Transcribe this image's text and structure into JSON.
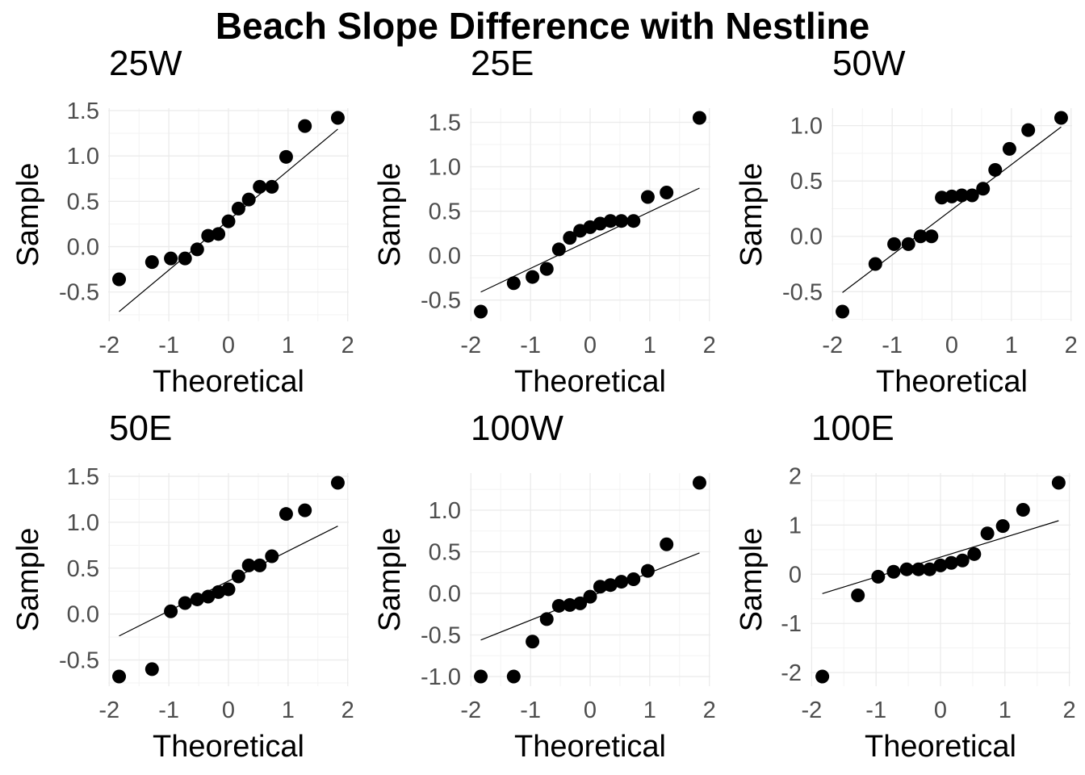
{
  "chart_data": {
    "type": "scatter",
    "title": "Beach Slope Difference with Nestline",
    "theoretical_quantiles": [
      -1.834,
      -1.282,
      -0.967,
      -0.728,
      -0.524,
      -0.341,
      -0.168,
      0,
      0.168,
      0.341,
      0.524,
      0.728,
      0.967,
      1.282,
      1.834
    ],
    "grid": true,
    "point_color": "#000000",
    "line_color": "#000000",
    "panels": [
      {
        "title": "25W",
        "xlabel": "Theoretical",
        "ylabel": "Sample",
        "xticks": [
          "-2",
          "-1",
          "0",
          "1",
          "2"
        ],
        "yticks": [
          "-0.5",
          "0.0",
          "0.5",
          "1.0",
          "1.5"
        ],
        "sample": [
          -0.36,
          -0.17,
          -0.13,
          -0.13,
          -0.03,
          0.12,
          0.14,
          0.28,
          0.42,
          0.52,
          0.66,
          0.66,
          0.99,
          1.33,
          1.42
        ]
      },
      {
        "title": "25E",
        "xlabel": "Theoretical",
        "ylabel": "Sample",
        "xticks": [
          "-2",
          "-1",
          "0",
          "1",
          "2"
        ],
        "yticks": [
          "-0.5",
          "0.0",
          "0.5",
          "1.0",
          "1.5"
        ],
        "sample": [
          -0.63,
          -0.31,
          -0.24,
          -0.15,
          0.07,
          0.2,
          0.28,
          0.32,
          0.36,
          0.39,
          0.39,
          0.39,
          0.66,
          0.71,
          1.55
        ]
      },
      {
        "title": "50W",
        "xlabel": "Theoretical",
        "ylabel": "Sample",
        "xticks": [
          "-2",
          "-1",
          "0",
          "1",
          "2"
        ],
        "yticks": [
          "-0.5",
          "0.0",
          "0.5",
          "1.0"
        ],
        "sample": [
          -0.68,
          -0.25,
          -0.07,
          -0.07,
          0.0,
          0.0,
          0.35,
          0.36,
          0.37,
          0.37,
          0.43,
          0.6,
          0.79,
          0.96,
          1.07
        ]
      },
      {
        "title": "50E",
        "xlabel": "Theoretical",
        "ylabel": "Sample",
        "xticks": [
          "-2",
          "-1",
          "0",
          "1",
          "2"
        ],
        "yticks": [
          "-0.5",
          "0.0",
          "0.5",
          "1.0",
          "1.5"
        ],
        "sample": [
          -0.68,
          -0.6,
          0.03,
          0.12,
          0.16,
          0.19,
          0.24,
          0.27,
          0.41,
          0.53,
          0.53,
          0.63,
          1.09,
          1.13,
          1.43
        ]
      },
      {
        "title": "100W",
        "xlabel": "Theoretical",
        "ylabel": "Sample",
        "xticks": [
          "-2",
          "-1",
          "0",
          "1",
          "2"
        ],
        "yticks": [
          "-1.0",
          "-0.5",
          "0.0",
          "0.5",
          "1.0"
        ],
        "sample": [
          -1.0,
          -1.0,
          -0.58,
          -0.31,
          -0.15,
          -0.14,
          -0.12,
          -0.04,
          0.08,
          0.1,
          0.14,
          0.17,
          0.27,
          0.59,
          1.33
        ]
      },
      {
        "title": "100E",
        "xlabel": "Theoretical",
        "ylabel": "Sample",
        "xticks": [
          "-2",
          "-1",
          "0",
          "1",
          "2"
        ],
        "yticks": [
          "-2",
          "-1",
          "0",
          "1",
          "2"
        ],
        "sample": [
          -2.08,
          -0.43,
          -0.05,
          0.05,
          0.1,
          0.1,
          0.1,
          0.18,
          0.23,
          0.28,
          0.41,
          0.83,
          0.98,
          1.31,
          1.86
        ]
      }
    ]
  }
}
